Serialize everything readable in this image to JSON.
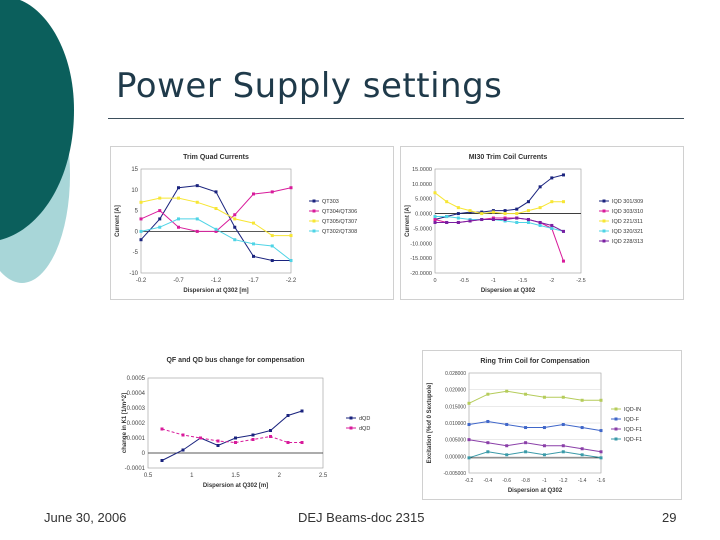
{
  "slide": {
    "title": "Power Supply settings",
    "footer_date": "June 30, 2006",
    "footer_center": "DEJ Beams-doc 2315",
    "page_number": "29"
  },
  "chart_data": [
    {
      "id": "trim-quad",
      "type": "line",
      "title": "Trim Quad Currents",
      "xlabel": "Dispersion at Q302 [m]",
      "ylabel": "Current [A]",
      "x": [
        -0.2,
        -0.45,
        -0.7,
        -0.95,
        -1.2,
        -1.45,
        -1.7,
        -1.95,
        -2.2
      ],
      "x_ticks": [
        "-0.2",
        "-0.7",
        "-1.2",
        "-1.7",
        "-2.2"
      ],
      "y_ticks": [
        "15",
        "10",
        "5",
        "0",
        "-5",
        "-10"
      ],
      "xlim": [
        -0.2,
        -2.2
      ],
      "ylim": [
        -10,
        15
      ],
      "legend_position": "right",
      "series": [
        {
          "name": "QT303",
          "color": "#1a237e",
          "values": [
            -2,
            3,
            10.5,
            11,
            9.5,
            1,
            -6,
            -7,
            -7
          ]
        },
        {
          "name": "QT304/QT306",
          "color": "#d81b9b",
          "values": [
            3,
            5,
            1,
            0,
            0,
            4,
            9,
            9.5,
            10.5
          ]
        },
        {
          "name": "QT305/QT307",
          "color": "#f7e634",
          "values": [
            7,
            8,
            8,
            7,
            5.5,
            3,
            2,
            -1,
            -1
          ]
        },
        {
          "name": "QT302/QT308",
          "color": "#4fd4e6",
          "values": [
            0,
            1,
            3,
            3,
            0.5,
            -2,
            -3,
            -3.5,
            -7
          ]
        }
      ]
    },
    {
      "id": "mi30-trim",
      "type": "line",
      "title": "MI30 Trim Coil Currents",
      "xlabel": "Dispersion at Q302",
      "ylabel": "Current [A]",
      "x": [
        0,
        -0.2,
        -0.4,
        -0.6,
        -0.8,
        -1.0,
        -1.2,
        -1.4,
        -1.6,
        -1.8,
        -2.0,
        -2.2
      ],
      "x_ticks": [
        "0",
        "-0.5",
        "-1",
        "-1.5",
        "-2",
        "-2.5"
      ],
      "y_ticks": [
        "15.0000",
        "10.0000",
        "5.0000",
        "0.0000",
        "-5.0000",
        "-10.0000",
        "-15.0000",
        "-20.0000"
      ],
      "xlim": [
        0,
        -2.5
      ],
      "ylim": [
        -20,
        15
      ],
      "legend_position": "right",
      "series": [
        {
          "name": "IQD 301/309",
          "color": "#1a237e",
          "values": [
            -2,
            -1,
            0,
            0.5,
            0.5,
            1,
            1,
            1.5,
            4,
            9,
            12,
            13
          ]
        },
        {
          "name": "IQD 303/310",
          "color": "#d81b9b",
          "values": [
            -2,
            -3,
            -3,
            -2.5,
            -2,
            -1.5,
            -1.5,
            -1.5,
            -2,
            -3,
            -5,
            -16
          ]
        },
        {
          "name": "IQD 221/311",
          "color": "#f7e634",
          "values": [
            7,
            4,
            2,
            1,
            0,
            0.5,
            0,
            0,
            1,
            2,
            4,
            4
          ]
        },
        {
          "name": "IQD 320/321",
          "color": "#4fd4e6",
          "values": [
            -1,
            -1,
            -1.5,
            -2,
            -2,
            -2,
            -2.5,
            -3,
            -3,
            -4,
            -5,
            -6
          ]
        },
        {
          "name": "IQD 228/313",
          "color": "#7a1fa2",
          "values": [
            -3,
            -3,
            -3,
            -2.5,
            -2,
            -2,
            -2,
            -1.5,
            -2,
            -3,
            -4,
            -6
          ]
        }
      ]
    },
    {
      "id": "qfqd-bus",
      "type": "line",
      "title": "QF and QD bus change for compensation",
      "xlabel": "Dispersion at Q302 [m]",
      "ylabel": "change in K1 [1/m^2]",
      "x": [
        0.2,
        0.5,
        0.75,
        1.0,
        1.25,
        1.5,
        1.75,
        2.0,
        2.2
      ],
      "x_ticks": [
        "0.5",
        "1",
        "1.5",
        "2",
        "2.5"
      ],
      "y_ticks": [
        "0.0005",
        "0.0004",
        "0.0003",
        "0.0002",
        "0.0001",
        "0",
        "-0.0001"
      ],
      "xlim": [
        0,
        2.5
      ],
      "ylim": [
        -0.0001,
        0.0005
      ],
      "legend_position": "right",
      "series": [
        {
          "name": "dQD",
          "color": "#1a237e",
          "values": [
            -5e-05,
            2e-05,
            0.0001,
            5e-05,
            0.0001,
            0.00012,
            0.00015,
            0.00025,
            0.00028
          ]
        },
        {
          "name": "dQD",
          "color": "#d81b9b",
          "values": [
            0.00016,
            0.00012,
            0.0001,
            8e-05,
            7e-05,
            9e-05,
            0.00011,
            7e-05,
            7e-05
          ]
        }
      ]
    },
    {
      "id": "ring-trim",
      "type": "line",
      "title": "Ring Trim Coil for Compensation",
      "xlabel": "Dispersion at Q302",
      "ylabel": "Excitation [%of 0 Sextupole]",
      "x": [
        -0.2,
        -0.4,
        -0.6,
        -0.8,
        -1.0,
        -1.2,
        -1.4,
        -1.6
      ],
      "x_ticks": [
        "-0.2",
        "-0.4",
        "-0.6",
        "-0.8",
        "-1",
        "-1.2",
        "-1.4",
        "-1.6"
      ],
      "y_ticks": [
        "0.028000",
        "0.020000",
        "0.015000",
        "0.010000",
        "0.005000",
        "0.000000",
        "-0.005000"
      ],
      "xlim": [
        -0.2,
        -1.6
      ],
      "ylim": [
        -0.005,
        0.028
      ],
      "legend_position": "right",
      "series": [
        {
          "name": "IQD-IN",
          "color": "#b5cc5a",
          "values": [
            0.018,
            0.021,
            0.022,
            0.021,
            0.02,
            0.02,
            0.019,
            0.019
          ]
        },
        {
          "name": "IQD-F",
          "color": "#3f66c9",
          "values": [
            0.011,
            0.012,
            0.011,
            0.01,
            0.01,
            0.011,
            0.01,
            0.009
          ]
        },
        {
          "name": "IQD-F1",
          "color": "#8a3fa8",
          "values": [
            0.006,
            0.005,
            0.004,
            0.005,
            0.004,
            0.004,
            0.003,
            0.002
          ]
        },
        {
          "name": "IQD-F1",
          "color": "#3a9aa8",
          "values": [
            0.0,
            0.002,
            0.001,
            0.002,
            0.001,
            0.002,
            0.001,
            0.0
          ]
        }
      ]
    }
  ]
}
